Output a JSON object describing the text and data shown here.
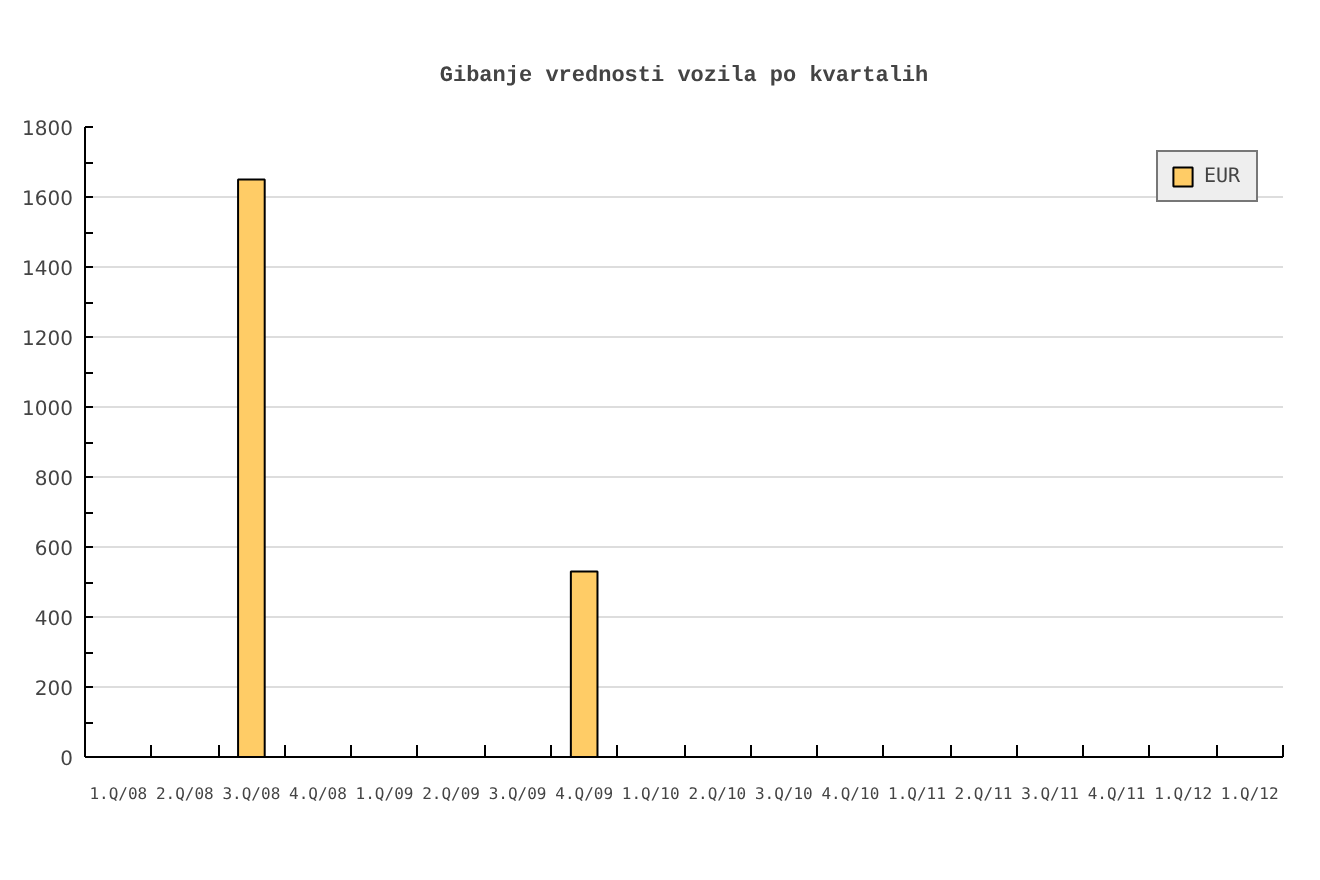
{
  "chart_data": {
    "type": "bar",
    "title": "Gibanje vrednosti vozila po kvartalih",
    "categories": [
      "1.Q/08",
      "2.Q/08",
      "3.Q/08",
      "4.Q/08",
      "1.Q/09",
      "2.Q/09",
      "3.Q/09",
      "4.Q/09",
      "1.Q/10",
      "2.Q/10",
      "3.Q/10",
      "4.Q/10",
      "1.Q/11",
      "2.Q/11",
      "3.Q/11",
      "4.Q/11",
      "1.Q/12",
      "1.Q/12"
    ],
    "series": [
      {
        "name": "EUR",
        "color": "#ffcc66",
        "values": [
          null,
          null,
          1650,
          null,
          null,
          null,
          null,
          530,
          null,
          null,
          null,
          null,
          null,
          null,
          null,
          null,
          null,
          null
        ]
      }
    ],
    "ylim": [
      0,
      1800
    ],
    "yticks": [
      0,
      200,
      400,
      600,
      800,
      1000,
      1200,
      1400,
      1600,
      1800
    ],
    "grid": "y",
    "legend": "top right"
  }
}
